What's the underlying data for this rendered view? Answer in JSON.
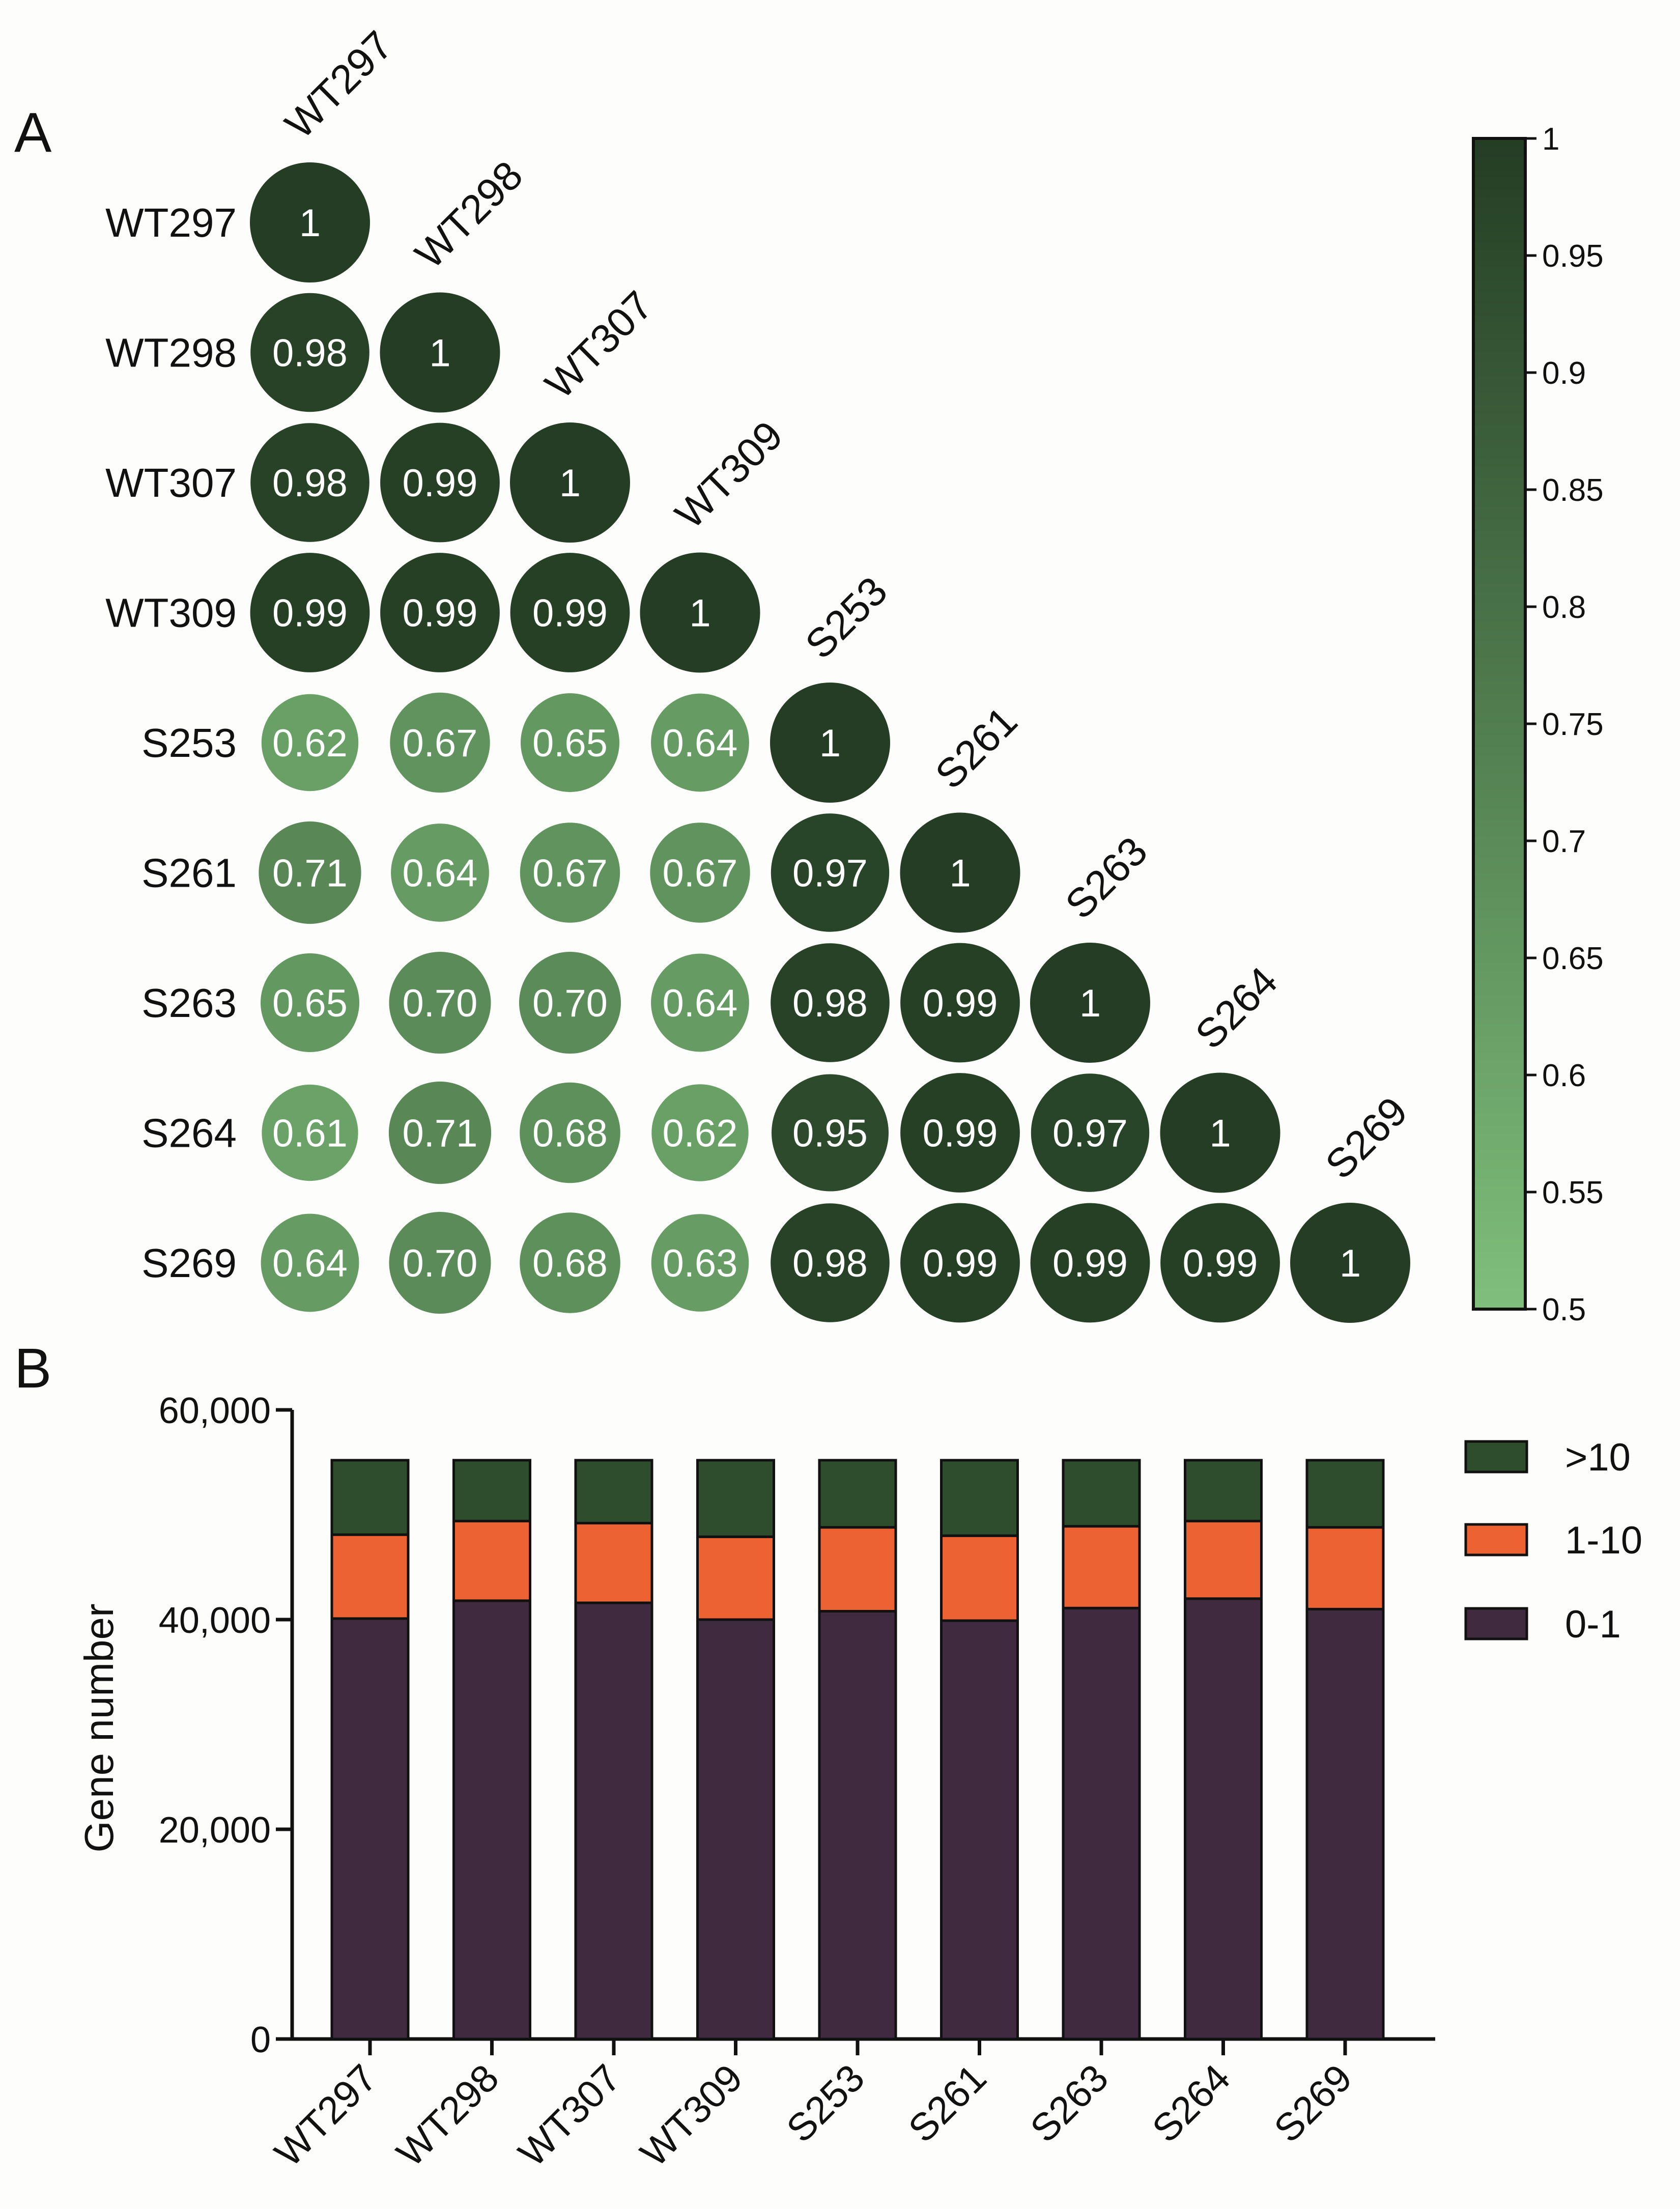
{
  "panels": {
    "a": "A",
    "b": "B"
  },
  "chart_data": [
    {
      "type": "heatmap",
      "title": "",
      "labels": [
        "WT297",
        "WT298",
        "WT307",
        "WT309",
        "S253",
        "S261",
        "S263",
        "S264",
        "S269"
      ],
      "lower_triangle": [
        [
          1
        ],
        [
          0.98,
          1
        ],
        [
          0.98,
          0.99,
          1
        ],
        [
          0.99,
          0.99,
          0.99,
          1
        ],
        [
          0.62,
          0.67,
          0.65,
          0.64,
          1
        ],
        [
          0.71,
          0.64,
          0.67,
          0.67,
          0.97,
          1
        ],
        [
          0.65,
          0.7,
          0.7,
          0.64,
          0.98,
          0.99,
          1
        ],
        [
          0.61,
          0.71,
          0.68,
          0.62,
          0.95,
          0.99,
          0.97,
          1
        ],
        [
          0.64,
          0.7,
          0.68,
          0.63,
          0.98,
          0.99,
          0.99,
          0.99,
          1
        ]
      ],
      "value_labels": [
        [
          "1"
        ],
        [
          "0.98",
          "1"
        ],
        [
          "0.98",
          "0.99",
          "1"
        ],
        [
          "0.99",
          "0.99",
          "0.99",
          "1"
        ],
        [
          "0.62",
          "0.67",
          "0.65",
          "0.64",
          "1"
        ],
        [
          "0.71",
          "0.64",
          "0.67",
          "0.67",
          "0.97",
          "1"
        ],
        [
          "0.65",
          "0.70",
          "0.70",
          "0.64",
          "0.98",
          "0.99",
          "1"
        ],
        [
          "0.61",
          "0.71",
          "0.68",
          "0.62",
          "0.95",
          "0.99",
          "0.97",
          "1"
        ],
        [
          "0.64",
          "0.70",
          "0.68",
          "0.63",
          "0.98",
          "0.99",
          "0.99",
          "0.99",
          "1"
        ]
      ],
      "colorbar": {
        "range": [
          0.5,
          1
        ],
        "ticks": [
          "0.5",
          "0.55",
          "0.6",
          "0.65",
          "0.7",
          "0.75",
          "0.8",
          "0.85",
          "0.9",
          "0.95",
          "1"
        ],
        "color_low": "#7fbf7b",
        "color_high": "#243d24"
      }
    },
    {
      "type": "bar",
      "stacked": true,
      "categories": [
        "WT297",
        "WT298",
        "WT307",
        "WT309",
        "S253",
        "S261",
        "S263",
        "S264",
        "S269"
      ],
      "series": [
        {
          "name": "0-1",
          "color": "#3f2a40",
          "values": [
            40100,
            41800,
            41600,
            40000,
            40800,
            39900,
            41100,
            42000,
            41000
          ]
        },
        {
          "name": "1-10",
          "color": "#ec6232",
          "values": [
            8000,
            7600,
            7600,
            7900,
            8000,
            8100,
            7800,
            7400,
            7800
          ]
        },
        {
          "name": ">10",
          "color": "#2d4d2d",
          "values": [
            7100,
            5800,
            6000,
            7300,
            6400,
            7200,
            6300,
            5800,
            6400
          ]
        }
      ],
      "xlabel": "",
      "ylabel": "Gene number",
      "ylim": [
        0,
        60000
      ],
      "yticks": [
        0,
        20000,
        40000,
        60000
      ],
      "ytick_labels": [
        "0",
        "20,000",
        "40,000",
        "60,000"
      ],
      "legend_order": [
        ">10",
        "1-10",
        "0-1"
      ],
      "legend_position": "top-right"
    }
  ]
}
